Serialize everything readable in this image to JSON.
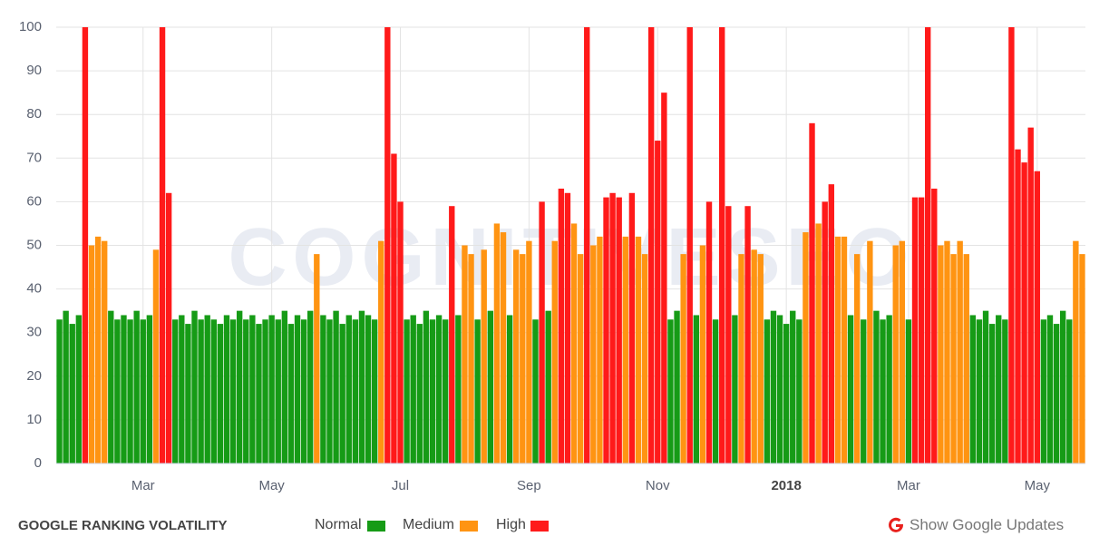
{
  "chart_data": {
    "type": "bar",
    "title": "GOOGLE RANKING VOLATILITY",
    "watermark": "COGNITIVESEO",
    "link": "Show Google Updates",
    "categories": [
      null,
      null,
      null,
      null,
      null,
      null,
      null,
      null,
      null,
      null,
      null,
      null,
      null,
      "Mar",
      null,
      null,
      null,
      null,
      null,
      null,
      null,
      null,
      null,
      null,
      null,
      null,
      null,
      null,
      null,
      null,
      null,
      null,
      null,
      "May",
      null,
      null,
      null,
      null,
      null,
      null,
      null,
      null,
      null,
      null,
      null,
      null,
      null,
      null,
      null,
      null,
      null,
      null,
      null,
      "Jul",
      null,
      null,
      null,
      null,
      null,
      null,
      null,
      null,
      null,
      null,
      null,
      null,
      null,
      null,
      null,
      null,
      null,
      null,
      null,
      "Sep",
      null,
      null,
      null,
      null,
      null,
      null,
      null,
      null,
      null,
      null,
      null,
      null,
      null,
      null,
      null,
      null,
      null,
      null,
      null,
      "Nov",
      null,
      null,
      null,
      null,
      null,
      null,
      null,
      null,
      null,
      null,
      null,
      null,
      null,
      null,
      null,
      null,
      null,
      null,
      null,
      "2018",
      null,
      null,
      null,
      null,
      null,
      null,
      null,
      null,
      null,
      null,
      null,
      null,
      null,
      null,
      null,
      null,
      null,
      null,
      "Mar",
      null,
      null,
      null,
      null,
      null,
      null,
      null,
      null,
      null,
      null,
      null,
      null,
      null,
      null,
      null,
      null,
      null,
      null,
      null,
      "May",
      null,
      null,
      null,
      null,
      null,
      null,
      null
    ],
    "series": [
      {
        "name": "Normal",
        "color": "#169b16",
        "values": [
          33,
          35,
          32,
          34,
          null,
          null,
          null,
          null,
          35,
          33,
          34,
          33,
          35,
          33,
          34,
          null,
          null,
          null,
          33,
          34,
          32,
          35,
          33,
          34,
          33,
          32,
          34,
          33,
          35,
          33,
          34,
          32,
          33,
          34,
          33,
          35,
          32,
          34,
          33,
          35,
          null,
          34,
          33,
          35,
          32,
          34,
          33,
          35,
          34,
          33,
          null,
          null,
          null,
          null,
          33,
          34,
          32,
          35,
          33,
          34,
          33,
          null,
          34,
          null,
          null,
          33,
          null,
          35,
          null,
          null,
          34,
          null,
          null,
          null,
          33,
          null,
          35,
          null,
          null,
          null,
          null,
          null,
          null,
          null,
          null,
          null,
          null,
          null,
          null,
          null,
          null,
          null,
          null,
          null,
          null,
          33,
          35,
          null,
          null,
          34,
          null,
          null,
          33,
          null,
          null,
          34,
          null,
          null,
          null,
          null,
          33,
          35,
          34,
          32,
          35,
          33,
          null,
          null,
          null,
          null,
          null,
          null,
          null,
          34,
          null,
          33,
          null,
          35,
          33,
          34,
          null,
          null,
          33,
          null,
          null,
          null,
          null,
          null,
          null,
          null,
          null,
          null,
          34,
          33,
          35,
          32,
          34,
          33,
          null,
          null,
          null,
          null,
          null,
          33,
          34,
          32,
          35,
          33,
          null,
          null
        ]
      },
      {
        "name": "Medium",
        "color": "#ff9412",
        "values": [
          null,
          null,
          null,
          null,
          null,
          50,
          52,
          51,
          null,
          null,
          null,
          null,
          null,
          null,
          null,
          49,
          null,
          null,
          null,
          null,
          null,
          null,
          null,
          null,
          null,
          null,
          null,
          null,
          null,
          null,
          null,
          null,
          null,
          null,
          null,
          null,
          null,
          null,
          null,
          null,
          48,
          null,
          null,
          null,
          null,
          null,
          null,
          null,
          null,
          null,
          51,
          null,
          null,
          null,
          null,
          null,
          null,
          null,
          null,
          null,
          null,
          null,
          null,
          50,
          48,
          null,
          49,
          null,
          55,
          53,
          null,
          49,
          48,
          51,
          null,
          null,
          null,
          51,
          null,
          null,
          55,
          48,
          null,
          50,
          52,
          null,
          null,
          null,
          52,
          null,
          52,
          48,
          null,
          null,
          null,
          null,
          null,
          48,
          null,
          null,
          50,
          null,
          null,
          null,
          null,
          null,
          48,
          null,
          49,
          48,
          null,
          null,
          null,
          null,
          null,
          null,
          53,
          null,
          55,
          null,
          null,
          52,
          52,
          null,
          48,
          null,
          51,
          null,
          null,
          null,
          50,
          51,
          null,
          null,
          null,
          null,
          null,
          50,
          51,
          48,
          51,
          48,
          null,
          null,
          null,
          null,
          null,
          null,
          null,
          null,
          null,
          null,
          null,
          null,
          null,
          null,
          null,
          null,
          51,
          48
        ]
      },
      {
        "name": "High",
        "color": "#ff1a1a",
        "values": [
          null,
          null,
          null,
          null,
          100,
          null,
          null,
          null,
          null,
          null,
          null,
          null,
          null,
          null,
          null,
          null,
          100,
          62,
          null,
          null,
          null,
          null,
          null,
          null,
          null,
          null,
          null,
          null,
          null,
          null,
          null,
          null,
          null,
          null,
          null,
          null,
          null,
          null,
          null,
          null,
          null,
          null,
          null,
          null,
          null,
          null,
          null,
          null,
          null,
          null,
          null,
          100,
          71,
          60,
          null,
          null,
          null,
          null,
          null,
          null,
          null,
          59,
          null,
          null,
          null,
          null,
          null,
          null,
          null,
          null,
          null,
          null,
          null,
          null,
          null,
          60,
          null,
          null,
          63,
          62,
          null,
          null,
          100,
          null,
          null,
          61,
          62,
          61,
          null,
          62,
          null,
          null,
          100,
          74,
          85,
          null,
          null,
          null,
          100,
          null,
          null,
          60,
          null,
          100,
          59,
          null,
          null,
          59,
          null,
          null,
          null,
          null,
          null,
          null,
          null,
          null,
          null,
          78,
          null,
          60,
          64,
          null,
          null,
          null,
          null,
          null,
          null,
          null,
          null,
          null,
          null,
          null,
          null,
          61,
          61,
          100,
          63,
          null,
          null,
          null,
          null,
          null,
          null,
          null,
          null,
          null,
          null,
          null,
          100,
          72,
          69,
          77,
          67,
          null,
          null,
          null,
          null,
          null,
          null,
          null
        ]
      }
    ],
    "ylim": [
      0,
      100
    ],
    "yticks": [
      0,
      10,
      20,
      30,
      40,
      50,
      60,
      70,
      80,
      90,
      100
    ],
    "grid": true
  }
}
